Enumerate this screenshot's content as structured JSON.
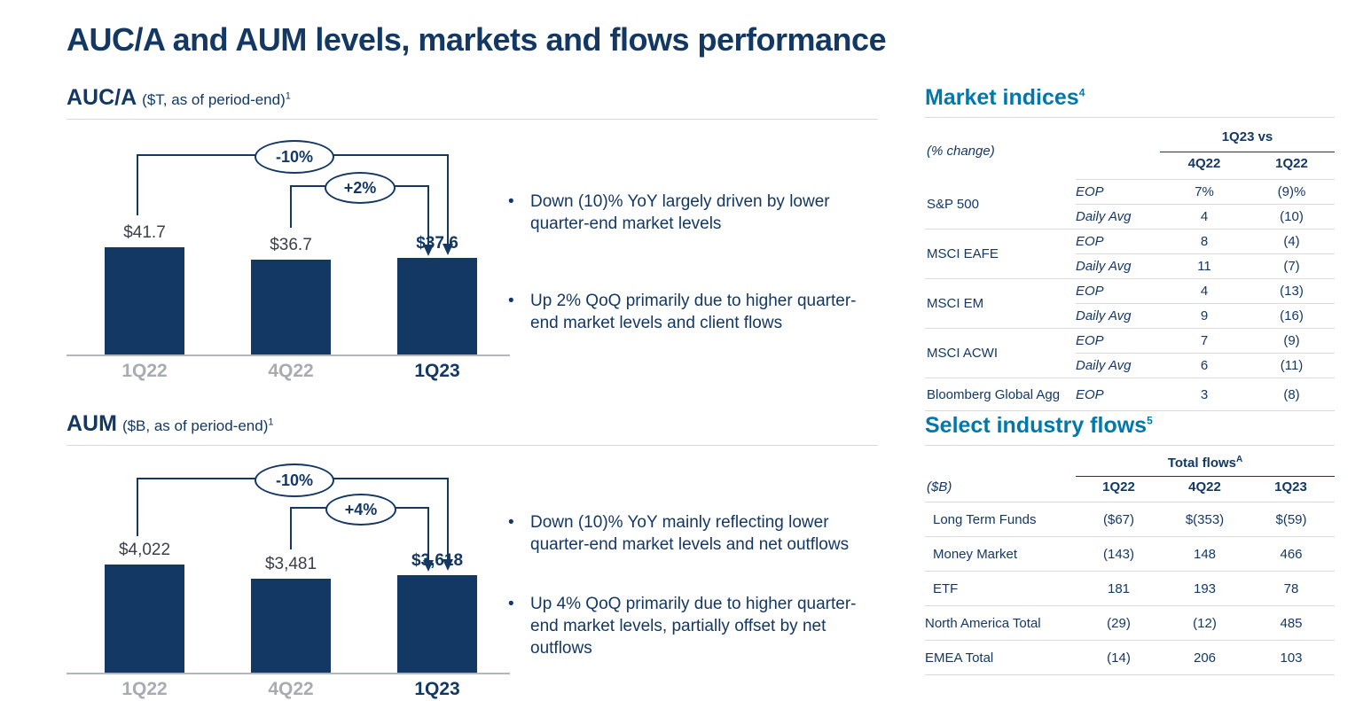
{
  "page_title": "AUC/A and AUM levels, markets and flows performance",
  "colors": {
    "navy": "#133863",
    "teal": "#0077ad",
    "graylab": "#a8abb0",
    "rule": "#d9d9d9",
    "valtext": "#3c4048"
  },
  "chart_data": [
    {
      "id": "auca",
      "type": "bar",
      "title": "AUC/A",
      "subtitle": "($T, as of period-end)",
      "footnote": "1",
      "categories": [
        "1Q22",
        "4Q22",
        "1Q23"
      ],
      "values": [
        41.7,
        36.7,
        37.6
      ],
      "value_labels": [
        "$41.7",
        "$36.7",
        "$37.6"
      ],
      "ylim": [
        0,
        45
      ],
      "annotations": [
        {
          "label": "-10%",
          "from": "1Q22",
          "to": "1Q23",
          "meaning": "YoY change"
        },
        {
          "label": "+2%",
          "from": "4Q22",
          "to": "1Q23",
          "meaning": "QoQ change"
        }
      ],
      "bullets": [
        "Down (10)% YoY largely driven by lower quarter-end market levels",
        "Up 2% QoQ primarily due to higher quarter-end market levels and client flows"
      ]
    },
    {
      "id": "aum",
      "type": "bar",
      "title": "AUM",
      "subtitle": "($B, as of period-end)",
      "footnote": "1",
      "categories": [
        "1Q22",
        "4Q22",
        "1Q23"
      ],
      "values": [
        4022,
        3481,
        3618
      ],
      "value_labels": [
        "$4,022",
        "$3,481",
        "$3,618"
      ],
      "ylim": [
        0,
        4400
      ],
      "annotations": [
        {
          "label": "-10%",
          "from": "1Q22",
          "to": "1Q23",
          "meaning": "YoY change"
        },
        {
          "label": "+4%",
          "from": "4Q22",
          "to": "1Q23",
          "meaning": "QoQ change"
        }
      ],
      "bullets": [
        "Down (10)% YoY mainly reflecting lower quarter-end market levels and net outflows",
        "Up 4% QoQ primarily due to higher quarter-end market levels, partially offset by net outflows"
      ]
    },
    {
      "id": "market-indices",
      "type": "table",
      "title": "Market indices",
      "footnote": "4",
      "unit_note": "(% change)",
      "col_group": "1Q23 vs",
      "columns": [
        "4Q22",
        "1Q22"
      ],
      "groups": [
        {
          "label": "S&P 500",
          "rows": [
            {
              "sub": "EOP",
              "values": [
                "7%",
                "(9)%"
              ]
            },
            {
              "sub": "Daily Avg",
              "values": [
                "4",
                "(10)"
              ]
            }
          ]
        },
        {
          "label": "MSCI EAFE",
          "rows": [
            {
              "sub": "EOP",
              "values": [
                "8",
                "(4)"
              ]
            },
            {
              "sub": "Daily Avg",
              "values": [
                "11",
                "(7)"
              ]
            }
          ]
        },
        {
          "label": "MSCI EM",
          "rows": [
            {
              "sub": "EOP",
              "values": [
                "4",
                "(13)"
              ]
            },
            {
              "sub": "Daily Avg",
              "values": [
                "9",
                "(16)"
              ]
            }
          ]
        },
        {
          "label": "MSCI ACWI",
          "rows": [
            {
              "sub": "EOP",
              "values": [
                "7",
                "(9)"
              ]
            },
            {
              "sub": "Daily Avg",
              "values": [
                "6",
                "(11)"
              ]
            }
          ]
        },
        {
          "label": "Bloomberg Global Agg",
          "rows": [
            {
              "sub": "EOP",
              "values": [
                "3",
                "(8)"
              ]
            }
          ]
        }
      ]
    },
    {
      "id": "industry-flows",
      "type": "table",
      "title": "Select industry flows",
      "footnote": "5",
      "unit_note": "($B)",
      "col_group": "Total flows",
      "col_group_sup": "A",
      "columns": [
        "1Q22",
        "4Q22",
        "1Q23"
      ],
      "rows": [
        {
          "label": "Long Term Funds",
          "values": [
            "($67)",
            "$(353)",
            "$(59)"
          ]
        },
        {
          "label": "Money Market",
          "values": [
            "(143)",
            "148",
            "466"
          ]
        },
        {
          "label": "ETF",
          "values": [
            "181",
            "193",
            "78"
          ]
        },
        {
          "label": "North America Total",
          "values": [
            "(29)",
            "(12)",
            "485"
          ]
        },
        {
          "label": "EMEA Total",
          "values": [
            "(14)",
            "206",
            "103"
          ]
        }
      ]
    }
  ]
}
